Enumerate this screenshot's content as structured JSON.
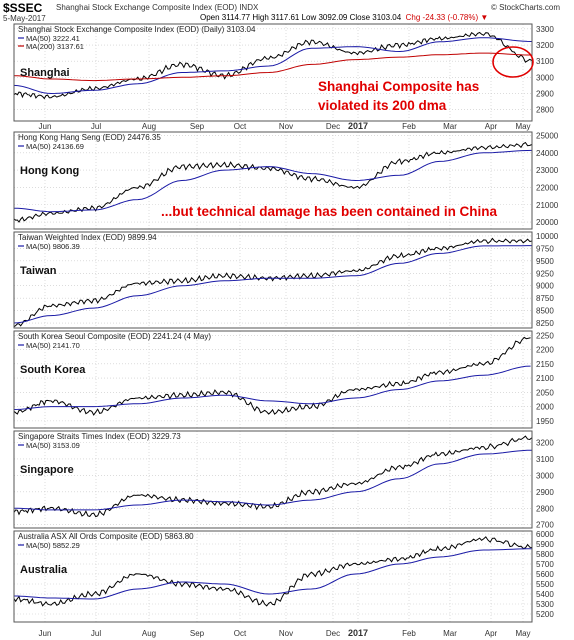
{
  "header": {
    "symbol": "$SSEC",
    "name": "Shanghai Stock Exchange Composite Index (EOD) INDX",
    "date": "5-May-2017",
    "ohlc": "Open 3114.77  High 3117.61  Low 3092.09  Close 3103.04",
    "change": "Chg -24.33 (-0.78%) ▼",
    "logo": "© StockCharts.com"
  },
  "colors": {
    "price": "#000000",
    "ma50": "#1a1aa6",
    "ma200": "#c00000",
    "annotation": "#e00000",
    "grid": "#c8c8c8",
    "frame": "#555555"
  },
  "x_axis": {
    "labels": [
      "Jun",
      "Jul",
      "Aug",
      "Sep",
      "Oct",
      "Nov",
      "Dec",
      "2017",
      "Feb",
      "Mar",
      "Apr",
      "May"
    ],
    "bold_label": "2017"
  },
  "annotations": {
    "shanghai_note": "Shanghai Composite has violated its 200 dma",
    "china_note": "...but technical damage has been contained in China"
  },
  "chart_data": [
    {
      "type": "line",
      "title": "Shanghai Stock Exchange Composite Index (EOD) (Daily) 3103.04",
      "label": "Shanghai",
      "ma_labels": [
        "MA(50) 3222.41",
        "MA(200) 3137.61"
      ],
      "x": [
        "2016-05-06",
        "2016-06-01",
        "2016-07-01",
        "2016-08-01",
        "2016-09-01",
        "2016-10-01",
        "2016-11-01",
        "2016-12-01",
        "2017-01-01",
        "2017-02-01",
        "2017-03-01",
        "2017-04-01",
        "2017-05-05"
      ],
      "y_ticks": [
        2800,
        2900,
        3000,
        3100,
        3200,
        3300
      ],
      "ylim": [
        2730,
        3330
      ],
      "series": [
        {
          "values": [
            2900,
            2880,
            2930,
            2990,
            3080,
            3010,
            3120,
            3220,
            3150,
            3200,
            3240,
            3270,
            3103
          ]
        },
        {
          "values": [
            2950,
            2900,
            2920,
            2960,
            3030,
            3040,
            3070,
            3180,
            3190,
            3160,
            3220,
            3245,
            3222
          ]
        },
        {
          "values": [
            3010,
            2990,
            2980,
            2990,
            3000,
            3010,
            3030,
            3080,
            3110,
            3125,
            3140,
            3150,
            3138
          ]
        }
      ]
    },
    {
      "type": "line",
      "title": "Hong Kong Hang Seng (EOD) 24476.35",
      "label": "Hong Kong",
      "ma_labels": [
        "MA(50) 24136.69"
      ],
      "x": [
        "2016-05-06",
        "2016-06-01",
        "2016-07-01",
        "2016-08-01",
        "2016-09-01",
        "2016-10-01",
        "2016-11-01",
        "2016-12-01",
        "2017-01-01",
        "2017-02-01",
        "2017-03-01",
        "2017-04-01",
        "2017-05-05"
      ],
      "y_ticks": [
        20000,
        21000,
        22000,
        23000,
        24000,
        25000
      ],
      "ylim": [
        19600,
        25200
      ],
      "series": [
        {
          "values": [
            20100,
            20500,
            20800,
            22000,
            23200,
            23300,
            23100,
            22500,
            22000,
            23500,
            24000,
            24300,
            24476
          ]
        },
        {
          "values": [
            20800,
            20600,
            20700,
            21300,
            22400,
            23000,
            23200,
            22800,
            22400,
            22700,
            23500,
            24000,
            24137
          ]
        }
      ]
    },
    {
      "type": "line",
      "title": "Taiwan Weighted Index (EOD) 9899.94",
      "label": "Taiwan",
      "ma_labels": [
        "MA(50) 9806.39"
      ],
      "x": [
        "2016-05-06",
        "2016-06-01",
        "2016-07-01",
        "2016-08-01",
        "2016-09-01",
        "2016-10-01",
        "2016-11-01",
        "2016-12-01",
        "2017-01-01",
        "2017-02-01",
        "2017-03-01",
        "2017-04-01",
        "2017-05-05"
      ],
      "y_ticks": [
        8250,
        8500,
        8750,
        9000,
        9250,
        9500,
        9750,
        10000
      ],
      "ylim": [
        8150,
        10080
      ],
      "series": [
        {
          "values": [
            8200,
            8600,
            8700,
            9050,
            9100,
            9200,
            9150,
            9200,
            9300,
            9600,
            9750,
            9900,
            9900
          ]
        },
        {
          "values": [
            8250,
            8400,
            8550,
            8800,
            9000,
            9100,
            9150,
            9150,
            9200,
            9450,
            9650,
            9800,
            9806
          ]
        }
      ]
    },
    {
      "type": "line",
      "title": "South Korea Seoul Composite (EOD) 2241.24 (4 May)",
      "label": "South Korea",
      "ma_labels": [
        "MA(50) 2141.70"
      ],
      "x": [
        "2016-05-06",
        "2016-06-01",
        "2016-07-01",
        "2016-08-01",
        "2016-09-01",
        "2016-10-01",
        "2016-11-01",
        "2016-12-01",
        "2017-01-01",
        "2017-02-01",
        "2017-03-01",
        "2017-04-01",
        "2017-05-04"
      ],
      "y_ticks": [
        1950,
        2000,
        2050,
        2100,
        2150,
        2200,
        2250
      ],
      "ylim": [
        1925,
        2265
      ],
      "series": [
        {
          "values": [
            1980,
            2020,
            1980,
            2030,
            2040,
            2050,
            1980,
            2000,
            2060,
            2080,
            2120,
            2150,
            2241
          ]
        },
        {
          "values": [
            1990,
            2000,
            2000,
            2010,
            2030,
            2040,
            2020,
            2010,
            2030,
            2060,
            2090,
            2110,
            2142
          ]
        }
      ]
    },
    {
      "type": "line",
      "title": "Singapore Straits Times Index (EOD) 3229.73",
      "label": "Singapore",
      "ma_labels": [
        "MA(50) 3153.09"
      ],
      "x": [
        "2016-05-06",
        "2016-06-01",
        "2016-07-01",
        "2016-08-01",
        "2016-09-01",
        "2016-10-01",
        "2016-11-01",
        "2016-12-01",
        "2017-01-01",
        "2017-02-01",
        "2017-03-01",
        "2017-04-01",
        "2017-05-05"
      ],
      "y_ticks": [
        2700,
        2800,
        2900,
        3000,
        3100,
        3200
      ],
      "ylim": [
        2680,
        3270
      ],
      "series": [
        {
          "values": [
            2780,
            2800,
            2760,
            2880,
            2850,
            2830,
            2810,
            2900,
            2950,
            3050,
            3130,
            3170,
            3230
          ]
        },
        {
          "values": [
            2800,
            2790,
            2790,
            2820,
            2850,
            2840,
            2820,
            2850,
            2900,
            2980,
            3070,
            3130,
            3153
          ]
        }
      ]
    },
    {
      "type": "line",
      "title": "Australia ASX All Ords Composite (EOD) 5863.80",
      "label": "Australia",
      "ma_labels": [
        "MA(50) 5852.29"
      ],
      "x": [
        "2016-05-06",
        "2016-06-01",
        "2016-07-01",
        "2016-08-01",
        "2016-09-01",
        "2016-10-01",
        "2016-11-01",
        "2016-12-01",
        "2017-01-01",
        "2017-02-01",
        "2017-03-01",
        "2017-04-01",
        "2017-05-05"
      ],
      "y_ticks": [
        5200,
        5300,
        5400,
        5500,
        5600,
        5700,
        5800,
        5900,
        6000
      ],
      "ylim": [
        5120,
        6030
      ],
      "series": [
        {
          "values": [
            5350,
            5300,
            5400,
            5600,
            5500,
            5450,
            5300,
            5600,
            5700,
            5750,
            5850,
            5950,
            5864
          ]
        },
        {
          "values": [
            5380,
            5360,
            5350,
            5450,
            5520,
            5500,
            5400,
            5450,
            5600,
            5700,
            5770,
            5840,
            5852
          ]
        }
      ]
    }
  ]
}
